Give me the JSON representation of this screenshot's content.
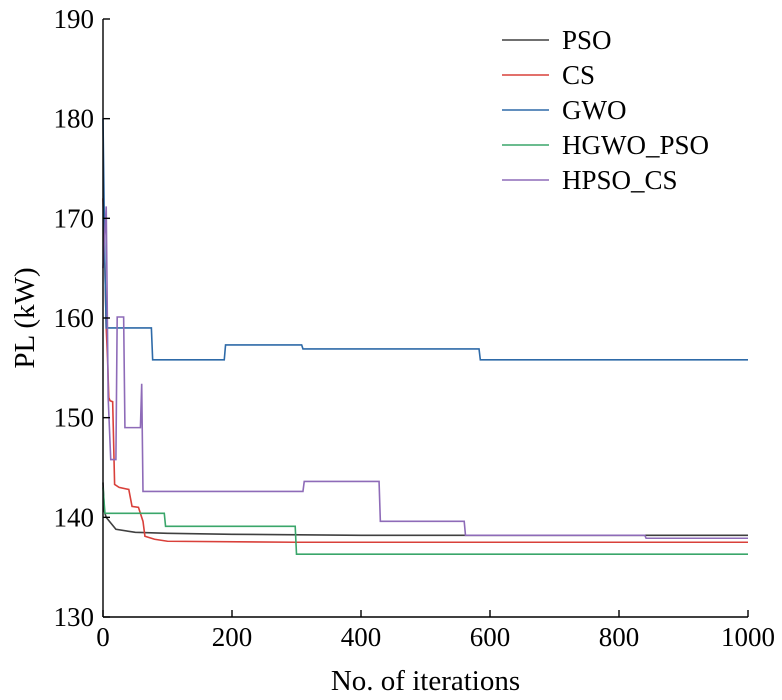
{
  "chart_data": {
    "type": "line",
    "xlabel": "No. of iterations",
    "ylabel": "PL (kW)",
    "xlim": [
      0,
      1000
    ],
    "ylim": [
      130,
      190
    ],
    "x_ticks": [
      0,
      200,
      400,
      600,
      800,
      1000
    ],
    "y_ticks": [
      130,
      140,
      150,
      160,
      170,
      180,
      190
    ],
    "grid": false,
    "legend_position": "top-right",
    "series": [
      {
        "name": "PSO",
        "color": "#404040",
        "points": [
          [
            0,
            143.5
          ],
          [
            2,
            140.6
          ],
          [
            5,
            140
          ],
          [
            10,
            139.6
          ],
          [
            20,
            138.8
          ],
          [
            50,
            138.5
          ],
          [
            100,
            138.4
          ],
          [
            200,
            138.3
          ],
          [
            400,
            138.2
          ],
          [
            600,
            138.2
          ],
          [
            800,
            138.2
          ],
          [
            1000,
            138.2
          ]
        ]
      },
      {
        "name": "CS",
        "color": "#d9403a",
        "points": [
          [
            0,
            172
          ],
          [
            3,
            165
          ],
          [
            5,
            159
          ],
          [
            7,
            156
          ],
          [
            9,
            152
          ],
          [
            11,
            151.7
          ],
          [
            15,
            151.6
          ],
          [
            18,
            143.3
          ],
          [
            25,
            143
          ],
          [
            40,
            142.8
          ],
          [
            45,
            141.1
          ],
          [
            55,
            141
          ],
          [
            62,
            139.6
          ],
          [
            65,
            138.1
          ],
          [
            80,
            137.8
          ],
          [
            100,
            137.6
          ],
          [
            300,
            137.5
          ],
          [
            1000,
            137.5
          ]
        ]
      },
      {
        "name": "GWO",
        "color": "#2e6aa8",
        "points": [
          [
            0,
            180
          ],
          [
            3,
            165
          ],
          [
            5,
            159
          ],
          [
            75,
            159
          ],
          [
            77,
            155.8
          ],
          [
            188,
            155.8
          ],
          [
            190,
            157.3
          ],
          [
            308,
            157.3
          ],
          [
            310,
            156.9
          ],
          [
            583,
            156.9
          ],
          [
            585,
            155.8
          ],
          [
            1000,
            155.8
          ]
        ]
      },
      {
        "name": "HGWO_PSO",
        "color": "#3aa66a",
        "points": [
          [
            0,
            143
          ],
          [
            3,
            140.4
          ],
          [
            95,
            140.4
          ],
          [
            97,
            139.1
          ],
          [
            298,
            139.1
          ],
          [
            300,
            136.3
          ],
          [
            1000,
            136.3
          ]
        ]
      },
      {
        "name": "HPSO_CS",
        "color": "#8e6bb8",
        "points": [
          [
            0,
            165
          ],
          [
            5,
            171.2
          ],
          [
            8,
            152
          ],
          [
            12,
            145.8
          ],
          [
            20,
            145.8
          ],
          [
            22,
            160.1
          ],
          [
            32,
            160.1
          ],
          [
            34,
            149
          ],
          [
            58,
            149
          ],
          [
            60,
            153.4
          ],
          [
            62,
            142.6
          ],
          [
            310,
            142.6
          ],
          [
            312,
            143.6
          ],
          [
            428,
            143.6
          ],
          [
            430,
            139.6
          ],
          [
            560,
            139.6
          ],
          [
            562,
            138.2
          ],
          [
            840,
            138.2
          ],
          [
            842,
            137.9
          ],
          [
            1000,
            137.9
          ]
        ]
      }
    ]
  }
}
